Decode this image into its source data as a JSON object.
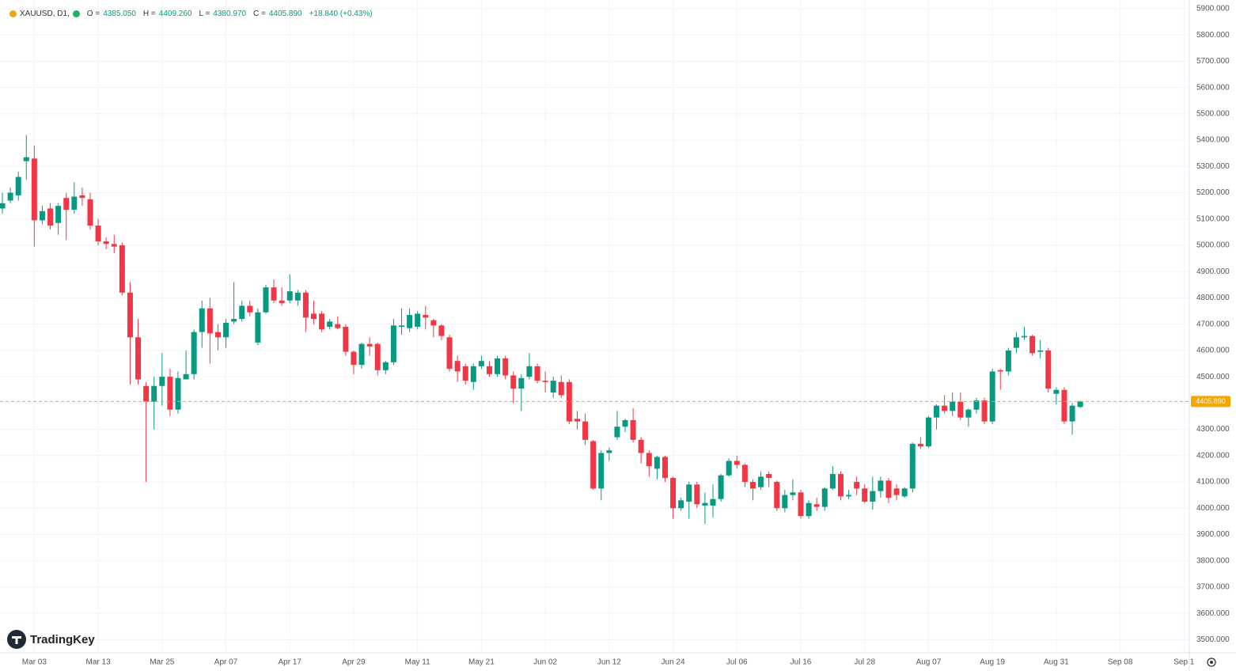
{
  "header": {
    "symbol": "XAUUSD, D1,",
    "o_label": "O =",
    "o": "4385.050",
    "h_label": "H =",
    "h": "4409.260",
    "l_label": "L =",
    "l": "4380.970",
    "c_label": "C =",
    "c": "4405.890",
    "change": "+18.840 (+0.43%)"
  },
  "brand": "TradingKey",
  "chart_data": {
    "type": "candlestick",
    "categories": [
      null,
      null,
      null,
      null,
      "Mar 03",
      null,
      null,
      null,
      null,
      null,
      null,
      null,
      "Mar 13",
      null,
      null,
      null,
      null,
      null,
      null,
      null,
      "Mar 25",
      null,
      null,
      null,
      null,
      null,
      null,
      null,
      "Apr 07",
      null,
      null,
      null,
      null,
      null,
      null,
      null,
      "Apr 17",
      null,
      null,
      null,
      null,
      null,
      null,
      null,
      "Apr 29",
      null,
      null,
      null,
      null,
      null,
      null,
      null,
      "May 11",
      null,
      null,
      null,
      null,
      null,
      null,
      null,
      "May 21",
      null,
      null,
      null,
      null,
      null,
      null,
      null,
      "Jun 02",
      null,
      null,
      null,
      null,
      null,
      null,
      null,
      "Jun 12",
      null,
      null,
      null,
      null,
      null,
      null,
      null,
      "Jun 24",
      null,
      null,
      null,
      null,
      null,
      null,
      null,
      "Jul 06",
      null,
      null,
      null,
      null,
      null,
      null,
      null,
      "Jul 16",
      null,
      null,
      null,
      null,
      null,
      null,
      null,
      "Jul 28",
      null,
      null,
      null,
      null,
      null,
      null,
      null,
      "Aug 07",
      null,
      null,
      null,
      null,
      null,
      null,
      null,
      "Aug 19",
      null,
      null,
      null,
      null,
      null,
      null,
      null,
      "Aug 31",
      null,
      null,
      null,
      null,
      null,
      null,
      null,
      "Sep 08",
      null,
      null,
      null,
      null,
      null,
      null,
      null,
      "Sep 1"
    ],
    "open": [
      5140,
      5170,
      5190,
      5320,
      5330,
      5095,
      5140,
      5085,
      5180,
      5135,
      5190,
      5175,
      5075,
      5015,
      5005,
      5000,
      4820,
      4650,
      4465,
      4405,
      4465,
      4500,
      4375,
      4490,
      4510,
      4670,
      4760,
      4670,
      4650,
      4710,
      4720,
      4770,
      4630,
      4745,
      4840,
      4790,
      4790,
      4790,
      4820,
      4740,
      4740,
      4690,
      4700,
      4690,
      4595,
      4545,
      4625,
      4625,
      4525,
      4555,
      4690,
      4685,
      4690,
      4735,
      4715,
      4695,
      4650,
      4560,
      4540,
      4480,
      4540,
      4540,
      4510,
      4570,
      4505,
      4455,
      4500,
      4540,
      4485,
      4440,
      4480,
      4480,
      4340,
      4330,
      4255,
      4075,
      4210,
      4270,
      4310,
      4335,
      4260,
      4210,
      4150,
      4195,
      4115,
      4000,
      4025,
      4090,
      4010,
      4010,
      4035,
      4125,
      4180,
      4165,
      4100,
      4080,
      4130,
      4100,
      4000,
      4050,
      4060,
      3970,
      4015,
      4005,
      4075,
      4130,
      4045,
      4100,
      4075,
      4025,
      4065,
      4105,
      4075,
      4045,
      4075,
      4245,
      4235,
      4345,
      4390,
      4370,
      4405,
      4345,
      4375,
      4410,
      4330,
      4525,
      4520,
      4610,
      4650,
      4655,
      4595,
      4600,
      4435,
      4450,
      4330,
      4385.05,
      null,
      null,
      null,
      null,
      null,
      null,
      null,
      null,
      null,
      null,
      null,
      null,
      null
    ],
    "high": [
      5200,
      5220,
      5280,
      5420,
      5380,
      5150,
      5160,
      5160,
      5200,
      5240,
      5220,
      5200,
      5100,
      5030,
      5040,
      5010,
      4860,
      4720,
      4480,
      4500,
      4590,
      4530,
      4520,
      4600,
      4680,
      4790,
      4800,
      4700,
      4720,
      4860,
      4790,
      4790,
      4760,
      4850,
      4870,
      4840,
      4890,
      4830,
      4830,
      4790,
      4750,
      4720,
      4730,
      4700,
      4600,
      4630,
      4650,
      4630,
      4560,
      4720,
      4760,
      4760,
      4750,
      4770,
      4720,
      4700,
      4660,
      4580,
      4550,
      4550,
      4580,
      4560,
      4580,
      4580,
      4520,
      4510,
      4590,
      4550,
      4520,
      4500,
      4505,
      4490,
      4370,
      4360,
      4260,
      4220,
      4230,
      4370,
      4340,
      4380,
      4270,
      4220,
      4200,
      4200,
      4120,
      4040,
      4100,
      4100,
      4060,
      4090,
      4130,
      4190,
      4200,
      4170,
      4110,
      4140,
      4140,
      4105,
      4070,
      4110,
      4070,
      4030,
      4040,
      4080,
      4160,
      4140,
      4070,
      4120,
      4090,
      4120,
      4120,
      4115,
      4090,
      4080,
      4250,
      4270,
      4350,
      4395,
      4430,
      4440,
      4440,
      4380,
      4420,
      4420,
      4530,
      4530,
      4610,
      4670,
      4690,
      4660,
      4640,
      4610,
      4460,
      4460,
      4400,
      4409.26,
      null,
      null,
      null,
      null,
      null,
      null,
      null,
      null,
      null,
      null,
      null,
      null,
      null
    ],
    "low": [
      5120,
      5160,
      5170,
      5250,
      4995,
      5080,
      5060,
      5040,
      5020,
      5120,
      5150,
      5060,
      5000,
      4985,
      4970,
      4810,
      4470,
      4470,
      4100,
      4300,
      4390,
      4350,
      4360,
      4490,
      4490,
      4610,
      4550,
      4600,
      4610,
      4700,
      4710,
      4730,
      4620,
      4740,
      4780,
      4770,
      4780,
      4770,
      4670,
      4700,
      4670,
      4680,
      4680,
      4580,
      4510,
      4530,
      4580,
      4505,
      4510,
      4545,
      4660,
      4670,
      4680,
      4680,
      4650,
      4640,
      4520,
      4480,
      4470,
      4450,
      4530,
      4500,
      4500,
      4490,
      4400,
      4370,
      4490,
      4475,
      4440,
      4420,
      4420,
      4320,
      4300,
      4240,
      4070,
      4030,
      4180,
      4260,
      4290,
      4250,
      4170,
      4120,
      4110,
      4100,
      3960,
      3990,
      3960,
      4000,
      3940,
      3965,
      4025,
      4120,
      4150,
      4080,
      4030,
      4070,
      4080,
      3990,
      3985,
      4030,
      3960,
      3960,
      3990,
      3990,
      4070,
      4030,
      4035,
      4050,
      4020,
      3995,
      4040,
      4020,
      4030,
      4040,
      4060,
      4225,
      4230,
      4300,
      4360,
      4350,
      4335,
      4310,
      4360,
      4320,
      4320,
      4450,
      4505,
      4590,
      4640,
      4580,
      4570,
      4440,
      4395,
      4320,
      4280,
      4380.97,
      null,
      null,
      null,
      null,
      null,
      null,
      null,
      null,
      null,
      null,
      null,
      null,
      null
    ],
    "close": [
      5160,
      5200,
      5260,
      5335,
      5095,
      5130,
      5075,
      5150,
      5135,
      5185,
      5180,
      5075,
      5015,
      5005,
      4995,
      4820,
      4650,
      4490,
      4405,
      4465,
      4500,
      4375,
      4495,
      4510,
      4670,
      4760,
      4665,
      4650,
      4705,
      4720,
      4770,
      4745,
      4745,
      4840,
      4790,
      4780,
      4825,
      4820,
      4725,
      4720,
      4680,
      4710,
      4685,
      4595,
      4545,
      4625,
      4615,
      4525,
      4555,
      4695,
      4695,
      4735,
      4740,
      4725,
      4695,
      4655,
      4530,
      4520,
      4485,
      4540,
      4560,
      4510,
      4570,
      4505,
      4455,
      4495,
      4540,
      4485,
      4480,
      4485,
      4430,
      4330,
      4330,
      4260,
      4075,
      4210,
      4220,
      4310,
      4335,
      4260,
      4210,
      4160,
      4195,
      4115,
      4000,
      4030,
      4090,
      4015,
      4020,
      4035,
      4125,
      4180,
      4165,
      4100,
      4075,
      4120,
      4115,
      4000,
      4050,
      4060,
      3970,
      4020,
      4005,
      4075,
      4130,
      4045,
      4050,
      4075,
      4025,
      4065,
      4105,
      4040,
      4050,
      4075,
      4245,
      4235,
      4345,
      4390,
      4370,
      4405,
      4345,
      4375,
      4410,
      4330,
      4520,
      4520,
      4600,
      4650,
      4655,
      4590,
      4600,
      4455,
      4450,
      4330,
      4390,
      4405.89,
      null,
      null,
      null,
      null,
      null,
      null,
      null,
      null,
      null,
      null,
      null,
      null,
      null
    ],
    "up_color": "#089981",
    "down_color": "#f23645",
    "ylim": [
      3450,
      5933
    ],
    "yticks": [
      {
        "value": 3500,
        "label": "3500.000"
      },
      {
        "value": 3600,
        "label": "3600.000"
      },
      {
        "value": 3700,
        "label": "3700.000"
      },
      {
        "value": 3800,
        "label": "3800.000"
      },
      {
        "value": 3900,
        "label": "3900.000"
      },
      {
        "value": 4000,
        "label": "4000.000"
      },
      {
        "value": 4100,
        "label": "4100.000"
      },
      {
        "value": 4200,
        "label": "4200.000"
      },
      {
        "value": 4300,
        "label": "4300.000"
      },
      {
        "value": 4400,
        "label": "4400.000"
      },
      {
        "value": 4500,
        "label": "4500.000"
      },
      {
        "value": 4600,
        "label": "4600.000"
      },
      {
        "value": 4700,
        "label": "4700.000"
      },
      {
        "value": 4800,
        "label": "4800.000"
      },
      {
        "value": 4900,
        "label": "4900.000"
      },
      {
        "value": 5000,
        "label": "5000.000"
      },
      {
        "value": 5100,
        "label": "5100.000"
      },
      {
        "value": 5200,
        "label": "5200.000"
      },
      {
        "value": 5300,
        "label": "5300.000"
      },
      {
        "value": 5400,
        "label": "5400.000"
      },
      {
        "value": 5500,
        "label": "5500.000"
      },
      {
        "value": 5600,
        "label": "5600.000"
      },
      {
        "value": 5700,
        "label": "5700.000"
      },
      {
        "value": 5800,
        "label": "5800.000"
      },
      {
        "value": 5900,
        "label": "5900.000"
      }
    ],
    "grid": true,
    "last_price": {
      "value": 4405.89,
      "label": "4405.890",
      "color": "#f7a600"
    }
  }
}
